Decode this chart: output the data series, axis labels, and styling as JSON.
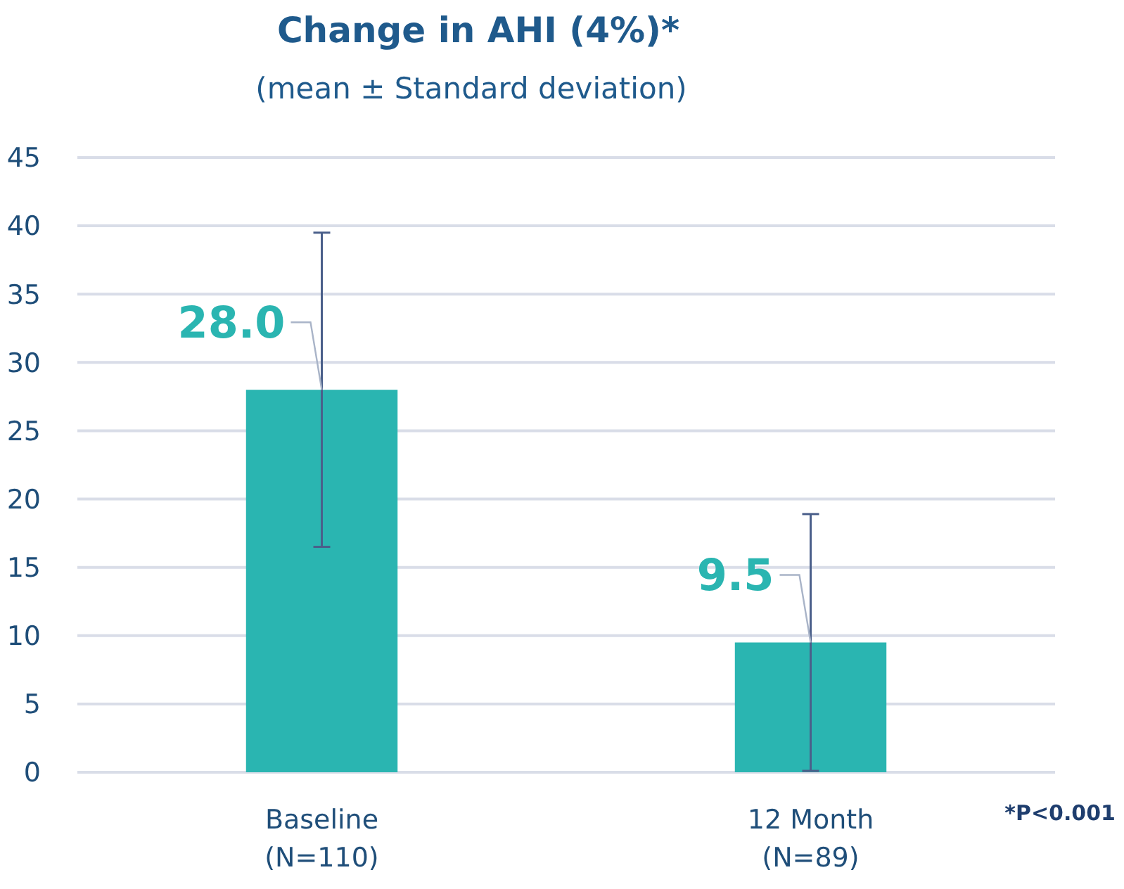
{
  "chart_data": {
    "type": "bar",
    "title": "Change in AHI (4%)*",
    "subtitle": "(mean ± Standard deviation)",
    "categories": [
      "Baseline\n(N=110)",
      "12 Month\n(N=89)"
    ],
    "values": [
      28.0,
      9.5
    ],
    "errors": [
      11.5,
      9.4
    ],
    "value_labels": [
      "28.0",
      "9.5"
    ],
    "color": "#2ab5b1",
    "ylim": [
      0,
      45
    ],
    "yticks": [
      0,
      5,
      10,
      15,
      20,
      25,
      30,
      35,
      40,
      45
    ],
    "grid": "y",
    "annotations": [
      "*P<0.001"
    ]
  }
}
